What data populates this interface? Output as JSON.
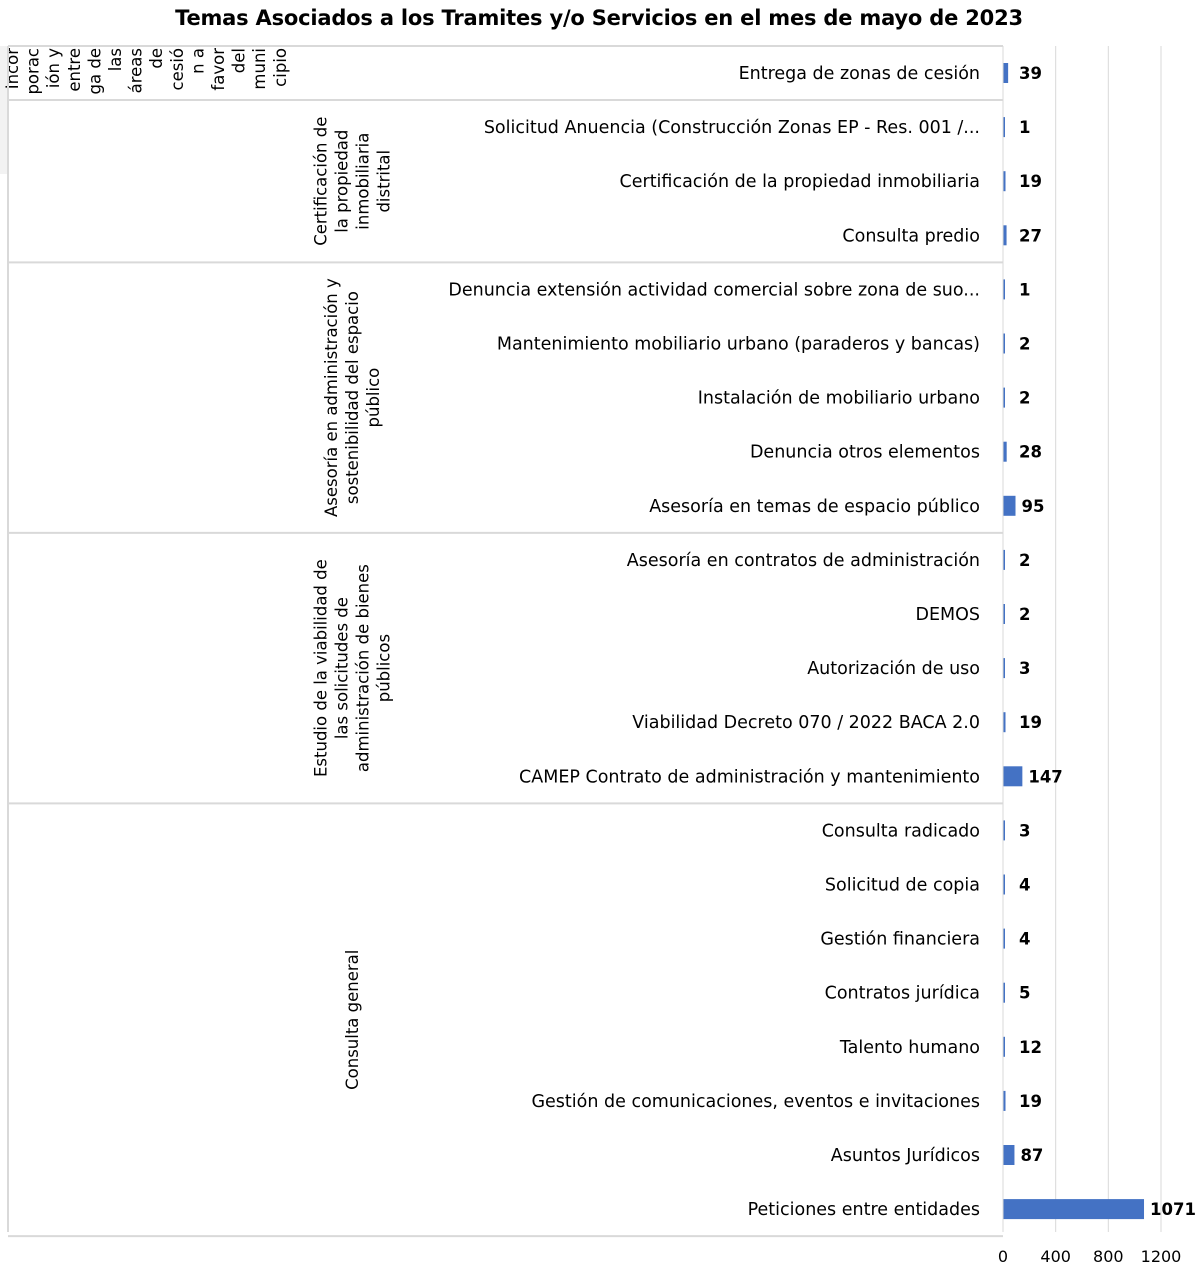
{
  "chart_data": {
    "type": "bar",
    "orientation": "horizontal",
    "title": "Temas Asociados a los Tramites y/o Servicios en el mes de mayo de 2023",
    "xlim": [
      0,
      1200
    ],
    "xticks": [
      "0",
      "400",
      "800",
      "1200"
    ],
    "grid": true,
    "bar_color": "#4472C4",
    "groups": [
      {
        "name": "Incorporación y entrega de las áreas de cesión a favor del municipio",
        "lines": [
          "Incor",
          "porac",
          "ión y",
          "entre",
          "ga de",
          "las",
          "áreas",
          "de",
          "cesió",
          "n a",
          "favor",
          "del",
          "muni",
          "cipio"
        ],
        "categories": [
          "Entrega de zonas de cesión"
        ],
        "values": [
          39
        ]
      },
      {
        "name": "Certificación de la propiedad inmobiliaria distrital",
        "lines": [
          "Certificación de",
          "la propiedad",
          "inmobiliaria",
          "distrital"
        ],
        "categories": [
          "Solicitud Anuencia (Construcción Zonas EP - Res. 001 /...",
          "Certificación de la propiedad inmobiliaria",
          "Consulta predio"
        ],
        "values": [
          1,
          19,
          27
        ]
      },
      {
        "name": "Asesoría en administración y sostenibilidad del espacio público",
        "lines": [
          "Asesoría en administración y",
          "sostenibilidad del espacio",
          "público"
        ],
        "categories": [
          "Denuncia extensión actividad comercial sobre zona de suo...",
          "Mantenimiento mobiliario urbano (paraderos y bancas)",
          "Instalación de mobiliario urbano",
          "Denuncia otros elementos",
          "Asesoría en temas de espacio público"
        ],
        "values": [
          1,
          2,
          2,
          28,
          95
        ]
      },
      {
        "name": "Estudio de la viabilidad de las solicitudes de administración de bienes públicos",
        "lines": [
          "Estudio de la viabilidad de",
          "las solicitudes de",
          "administración de bienes",
          "públicos"
        ],
        "categories": [
          "Asesoría en contratos de administración",
          "DEMOS",
          "Autorización de uso",
          "Viabilidad Decreto 070 / 2022 BACA 2.0",
          "CAMEP Contrato de administración y mantenimiento"
        ],
        "values": [
          2,
          2,
          3,
          19,
          147
        ]
      },
      {
        "name": "Consulta general",
        "lines": [
          "Consulta general"
        ],
        "categories": [
          "Consulta radicado",
          "Solicitud de copia",
          "Gestión financiera",
          "Contratos jurídica",
          "Talento humano",
          "Gestión de comunicaciones, eventos e invitaciones",
          "Asuntos Jurídicos",
          "Peticiones entre entidades"
        ],
        "values": [
          3,
          4,
          4,
          5,
          12,
          19,
          87,
          1071
        ]
      }
    ]
  }
}
